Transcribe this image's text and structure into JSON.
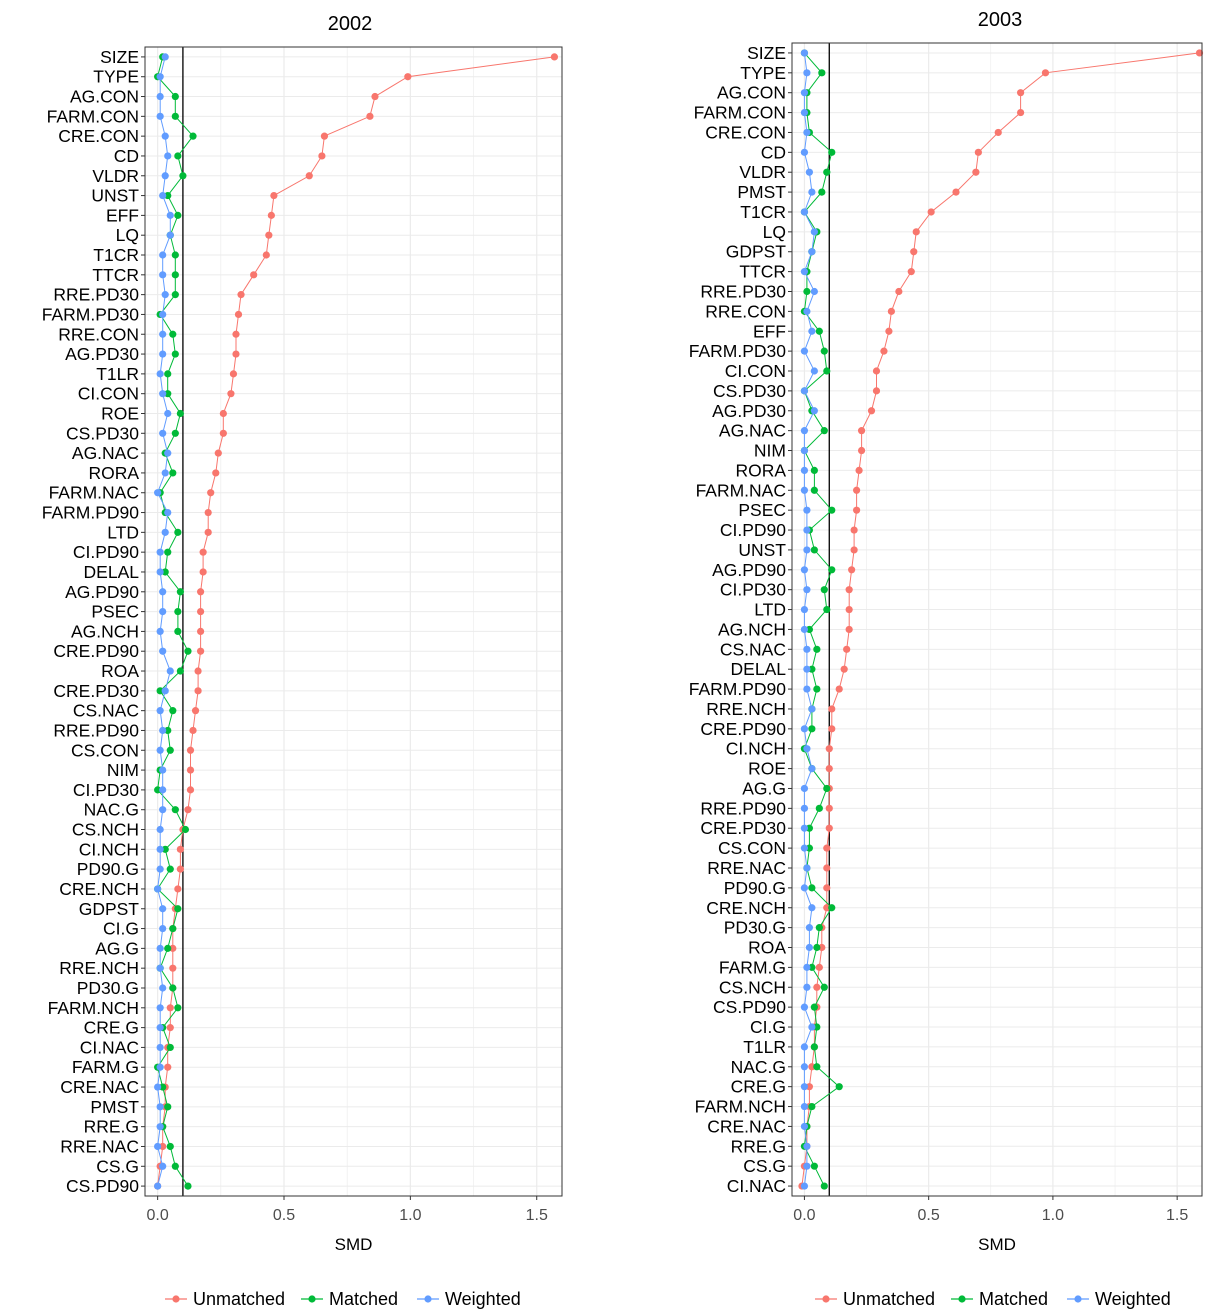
{
  "colors": {
    "Unmatched": "#F8766D",
    "Matched": "#00BA38",
    "Weighted": "#619CFF",
    "grid": "#EBEBEB",
    "refline": "#000000"
  },
  "legend": {
    "position": "bottom",
    "entries": [
      "Unmatched",
      "Matched",
      "Weighted"
    ]
  },
  "chart_data": [
    {
      "type": "line",
      "title": "2002",
      "xlabel": "SMD",
      "xlim": [
        -0.05,
        1.6
      ],
      "xticks": [
        0.0,
        0.5,
        1.0,
        1.5
      ],
      "xtick_labels": [
        "0.0",
        "0.5",
        "1.0",
        "1.5"
      ],
      "reference_x": 0.1,
      "grid": true,
      "categories": [
        "SIZE",
        "TYPE",
        "AG.CON",
        "FARM.CON",
        "CRE.CON",
        "CD",
        "VLDR",
        "UNST",
        "EFF",
        "LQ",
        "T1CR",
        "TTCR",
        "RRE.PD30",
        "FARM.PD30",
        "RRE.CON",
        "AG.PD30",
        "T1LR",
        "CI.CON",
        "ROE",
        "CS.PD30",
        "AG.NAC",
        "RORA",
        "FARM.NAC",
        "FARM.PD90",
        "LTD",
        "CI.PD90",
        "DELAL",
        "AG.PD90",
        "PSEC",
        "AG.NCH",
        "CRE.PD90",
        "ROA",
        "CRE.PD30",
        "CS.NAC",
        "RRE.PD90",
        "CS.CON",
        "NIM",
        "CI.PD30",
        "NAC.G",
        "CS.NCH",
        "CI.NCH",
        "PD90.G",
        "CRE.NCH",
        "GDPST",
        "CI.G",
        "AG.G",
        "RRE.NCH",
        "PD30.G",
        "FARM.NCH",
        "CRE.G",
        "CI.NAC",
        "FARM.G",
        "CRE.NAC",
        "PMST",
        "RRE.G",
        "RRE.NAC",
        "CS.G",
        "CS.PD90"
      ],
      "series": [
        {
          "name": "Unmatched",
          "values": [
            1.57,
            0.99,
            0.86,
            0.84,
            0.66,
            0.65,
            0.6,
            0.46,
            0.45,
            0.44,
            0.43,
            0.38,
            0.33,
            0.32,
            0.31,
            0.31,
            0.3,
            0.29,
            0.26,
            0.26,
            0.24,
            0.23,
            0.21,
            0.2,
            0.2,
            0.18,
            0.18,
            0.17,
            0.17,
            0.17,
            0.17,
            0.16,
            0.16,
            0.15,
            0.14,
            0.13,
            0.13,
            0.13,
            0.12,
            0.1,
            0.09,
            0.09,
            0.08,
            0.07,
            0.06,
            0.06,
            0.06,
            0.06,
            0.05,
            0.05,
            0.04,
            0.04,
            0.03,
            0.03,
            0.02,
            0.02,
            0.01,
            0.0
          ]
        },
        {
          "name": "Matched",
          "values": [
            0.02,
            0.0,
            0.07,
            0.07,
            0.14,
            0.08,
            0.1,
            0.04,
            0.08,
            0.05,
            0.07,
            0.07,
            0.07,
            0.01,
            0.06,
            0.07,
            0.04,
            0.04,
            0.09,
            0.07,
            0.03,
            0.06,
            0.01,
            0.03,
            0.08,
            0.04,
            0.03,
            0.09,
            0.08,
            0.08,
            0.12,
            0.09,
            0.01,
            0.06,
            0.04,
            0.05,
            0.01,
            0.0,
            0.07,
            0.11,
            0.03,
            0.05,
            0.0,
            0.08,
            0.06,
            0.04,
            0.01,
            0.06,
            0.08,
            0.02,
            0.05,
            0.0,
            0.02,
            0.04,
            0.02,
            0.05,
            0.07,
            0.12
          ]
        },
        {
          "name": "Weighted",
          "values": [
            0.03,
            0.01,
            0.01,
            0.01,
            0.03,
            0.04,
            0.03,
            0.02,
            0.05,
            0.05,
            0.02,
            0.02,
            0.03,
            0.02,
            0.02,
            0.02,
            0.01,
            0.02,
            0.04,
            0.02,
            0.04,
            0.03,
            0.0,
            0.04,
            0.03,
            0.01,
            0.01,
            0.02,
            0.02,
            0.01,
            0.02,
            0.05,
            0.03,
            0.01,
            0.02,
            0.01,
            0.02,
            0.02,
            0.02,
            0.01,
            0.01,
            0.01,
            0.0,
            0.02,
            0.02,
            0.01,
            0.01,
            0.02,
            0.01,
            0.01,
            0.01,
            0.01,
            0.0,
            0.01,
            0.01,
            0.0,
            0.02,
            0.0
          ]
        }
      ]
    },
    {
      "type": "line",
      "title": "2003",
      "xlabel": "SMD",
      "xlim": [
        -0.05,
        1.6
      ],
      "xticks": [
        0.0,
        0.5,
        1.0,
        1.5
      ],
      "xtick_labels": [
        "0.0",
        "0.5",
        "1.0",
        "1.5"
      ],
      "reference_x": 0.1,
      "grid": true,
      "categories": [
        "SIZE",
        "TYPE",
        "AG.CON",
        "FARM.CON",
        "CRE.CON",
        "CD",
        "VLDR",
        "PMST",
        "T1CR",
        "LQ",
        "GDPST",
        "TTCR",
        "RRE.PD30",
        "RRE.CON",
        "EFF",
        "FARM.PD30",
        "CI.CON",
        "CS.PD30",
        "AG.PD30",
        "AG.NAC",
        "NIM",
        "RORA",
        "FARM.NAC",
        "PSEC",
        "CI.PD90",
        "UNST",
        "AG.PD90",
        "CI.PD30",
        "LTD",
        "AG.NCH",
        "CS.NAC",
        "DELAL",
        "FARM.PD90",
        "RRE.NCH",
        "CRE.PD90",
        "CI.NCH",
        "ROE",
        "AG.G",
        "RRE.PD90",
        "CRE.PD30",
        "CS.CON",
        "RRE.NAC",
        "PD90.G",
        "CRE.NCH",
        "PD30.G",
        "ROA",
        "FARM.G",
        "CS.NCH",
        "CS.PD90",
        "CI.G",
        "T1LR",
        "NAC.G",
        "CRE.G",
        "FARM.NCH",
        "CRE.NAC",
        "RRE.G",
        "CS.G",
        "CI.NAC"
      ],
      "series": [
        {
          "name": "Unmatched",
          "values": [
            1.59,
            0.97,
            0.87,
            0.87,
            0.78,
            0.7,
            0.69,
            0.61,
            0.51,
            0.45,
            0.44,
            0.43,
            0.38,
            0.35,
            0.34,
            0.32,
            0.29,
            0.29,
            0.27,
            0.23,
            0.23,
            0.22,
            0.21,
            0.21,
            0.2,
            0.2,
            0.19,
            0.18,
            0.18,
            0.18,
            0.17,
            0.16,
            0.14,
            0.11,
            0.11,
            0.1,
            0.1,
            0.1,
            0.1,
            0.1,
            0.09,
            0.09,
            0.09,
            0.09,
            0.07,
            0.07,
            0.06,
            0.05,
            0.05,
            0.04,
            0.04,
            0.03,
            0.02,
            0.02,
            0.01,
            0.01,
            0.0,
            -0.01
          ]
        },
        {
          "name": "Matched",
          "values": [
            0.0,
            0.07,
            0.01,
            0.01,
            0.02,
            0.11,
            0.09,
            0.07,
            0.0,
            0.05,
            0.03,
            0.01,
            0.01,
            0.0,
            0.06,
            0.08,
            0.09,
            0.0,
            0.03,
            0.08,
            0.0,
            0.04,
            0.04,
            0.11,
            0.02,
            0.04,
            0.11,
            0.08,
            0.09,
            0.02,
            0.05,
            0.03,
            0.05,
            0.03,
            0.03,
            0.0,
            0.03,
            0.09,
            0.06,
            0.02,
            0.02,
            0.01,
            0.03,
            0.11,
            0.06,
            0.05,
            0.03,
            0.08,
            0.04,
            0.05,
            0.04,
            0.05,
            0.14,
            0.03,
            0.01,
            0.0,
            0.04,
            0.08
          ]
        },
        {
          "name": "Weighted",
          "values": [
            0.0,
            0.01,
            0.0,
            0.0,
            0.01,
            0.0,
            0.02,
            0.03,
            0.0,
            0.04,
            0.03,
            0.0,
            0.04,
            0.01,
            0.03,
            0.0,
            0.04,
            0.0,
            0.04,
            0.0,
            0.0,
            0.0,
            0.0,
            0.01,
            0.01,
            0.01,
            0.0,
            0.01,
            0.0,
            0.0,
            0.01,
            0.01,
            0.01,
            0.03,
            0.0,
            0.01,
            0.03,
            0.0,
            0.0,
            0.0,
            0.0,
            0.01,
            0.0,
            0.03,
            0.02,
            0.02,
            0.01,
            0.01,
            0.0,
            0.03,
            0.0,
            0.0,
            0.0,
            0.0,
            0.0,
            0.01,
            0.01,
            0.0
          ]
        }
      ]
    }
  ]
}
